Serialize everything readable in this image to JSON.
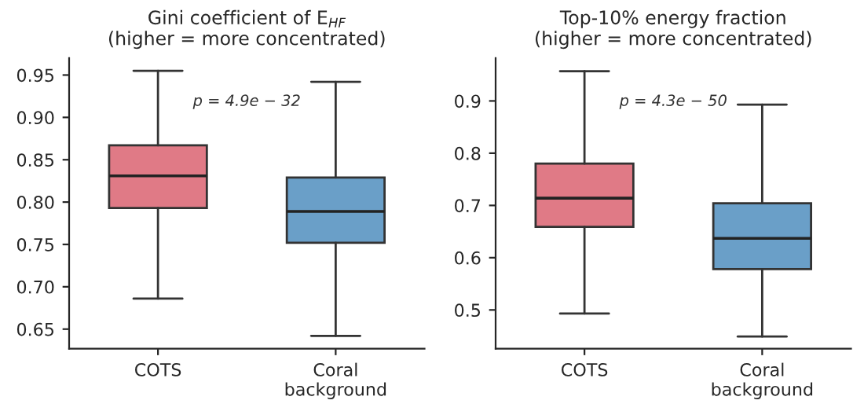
{
  "chart_data": [
    {
      "type": "box",
      "title": "Gini coefficient of E$_{HF}$\n(higher = more concentrated)",
      "categories": [
        "COTS",
        "Coral\nbackground"
      ],
      "colors": [
        "#e07a86",
        "#6a9fc8"
      ],
      "boxes": [
        {
          "low": 0.686,
          "q1": 0.793,
          "median": 0.831,
          "q3": 0.867,
          "high": 0.955
        },
        {
          "low": 0.642,
          "q1": 0.752,
          "median": 0.789,
          "q3": 0.829,
          "high": 0.942
        }
      ],
      "ylim": [
        0.627,
        0.97
      ],
      "yticks": [
        0.65,
        {
          "value": 0.7,
          "label": "0.70"
        },
        0.75,
        {
          "value": 0.8,
          "label": "0.80"
        },
        0.85,
        {
          "value": 0.9,
          "label": "0.90"
        },
        0.95
      ],
      "annotations": [
        "p = 4.9e − 32"
      ],
      "grid": false
    },
    {
      "type": "box",
      "title": "Top-10% energy fraction\n(higher = more concentrated)",
      "categories": [
        "COTS",
        "Coral\nbackground"
      ],
      "colors": [
        "#e07a86",
        "#6a9fc8"
      ],
      "boxes": [
        {
          "low": 0.493,
          "q1": 0.659,
          "median": 0.714,
          "q3": 0.78,
          "high": 0.957
        },
        {
          "low": 0.449,
          "q1": 0.578,
          "median": 0.637,
          "q3": 0.704,
          "high": 0.893
        }
      ],
      "ylim": [
        0.426,
        0.982
      ],
      "yticks": [
        0.5,
        0.6,
        0.7,
        0.8,
        0.9
      ],
      "annotations": [
        "p = 4.3e − 50"
      ],
      "grid": false
    }
  ]
}
